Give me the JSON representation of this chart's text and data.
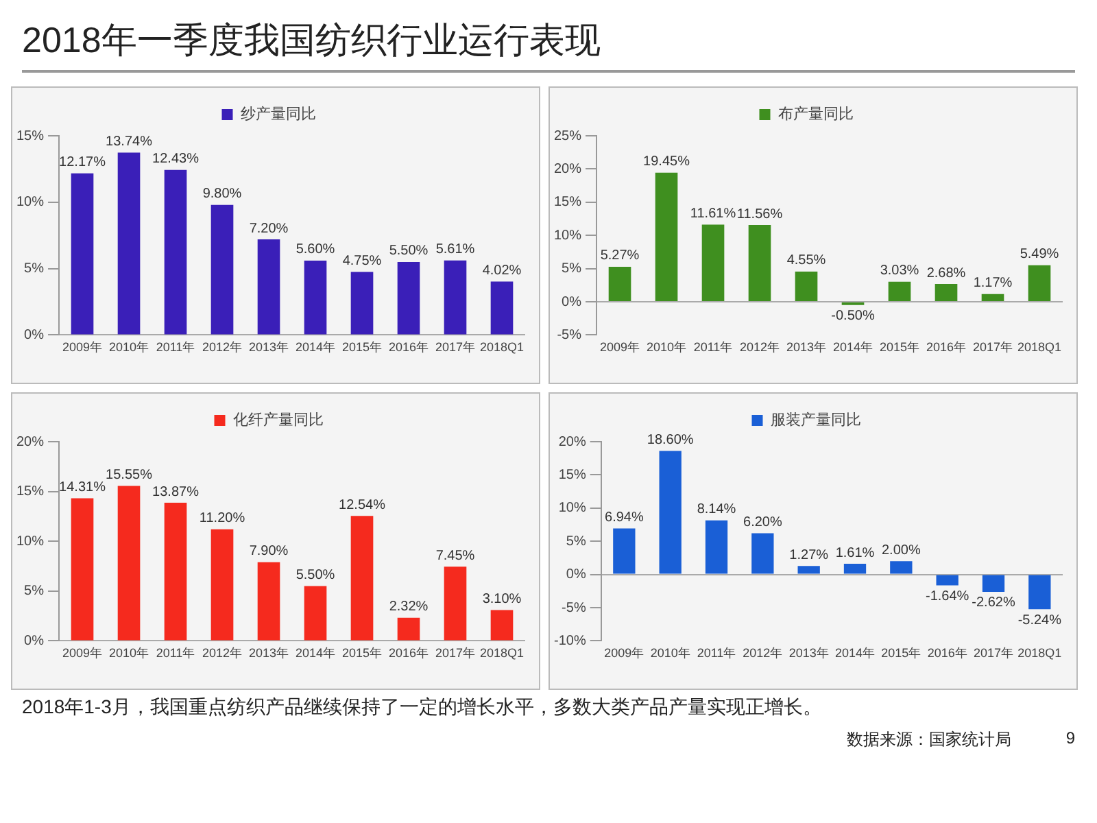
{
  "chart_data": [
    {
      "type": "other",
      "title": "2018年一季度我国纺织行业运行表现"
    },
    {
      "type": "bar",
      "categories": [
        "2009年",
        "2010年",
        "2011年",
        "2012年",
        "2013年",
        "2014年",
        "2015年",
        "2016年",
        "2017年",
        "2018Q1"
      ],
      "legend": "top",
      "series": [
        {
          "name": "纱产量同比",
          "color": "#3a1fb8",
          "values": [
            12.17,
            13.74,
            12.43,
            9.8,
            7.2,
            5.6,
            4.75,
            5.5,
            5.61,
            4.02
          ],
          "value_labels": [
            "12.17%",
            "13.74%",
            "12.43%",
            "9.80%",
            "7.20%",
            "5.60%",
            "4.75%",
            "5.50%",
            "5.61%",
            "4.02%"
          ]
        }
      ],
      "ylim": [
        0,
        15
      ],
      "yticks": [
        {
          "value": 0,
          "label": "0%"
        },
        {
          "value": 5,
          "label": "5%"
        },
        {
          "value": 10,
          "label": "10%"
        },
        {
          "value": 15,
          "label": "15%"
        }
      ]
    },
    {
      "type": "bar",
      "categories": [
        "2009年",
        "2010年",
        "2011年",
        "2012年",
        "2013年",
        "2014年",
        "2015年",
        "2016年",
        "2017年",
        "2018Q1"
      ],
      "legend": "top",
      "series": [
        {
          "name": "布产量同比",
          "color": "#3f8f1f",
          "values": [
            5.27,
            19.45,
            11.61,
            11.56,
            4.55,
            -0.5,
            3.03,
            2.68,
            1.17,
            5.49
          ],
          "value_labels": [
            "5.27%",
            "19.45%",
            "11.61%",
            "11.56%",
            "4.55%",
            "-0.50%",
            "3.03%",
            "2.68%",
            "1.17%",
            "5.49%"
          ]
        }
      ],
      "ylim": [
        -5,
        25
      ],
      "yticks": [
        {
          "value": -5,
          "label": "-5%"
        },
        {
          "value": 0,
          "label": "0%"
        },
        {
          "value": 5,
          "label": "5%"
        },
        {
          "value": 10,
          "label": "10%"
        },
        {
          "value": 15,
          "label": "15%"
        },
        {
          "value": 20,
          "label": "20%"
        },
        {
          "value": 25,
          "label": "25%"
        }
      ]
    },
    {
      "type": "bar",
      "categories": [
        "2009年",
        "2010年",
        "2011年",
        "2012年",
        "2013年",
        "2014年",
        "2015年",
        "2016年",
        "2017年",
        "2018Q1"
      ],
      "legend": "top",
      "series": [
        {
          "name": "化纤产量同比",
          "color": "#f52a1e",
          "values": [
            14.31,
            15.55,
            13.87,
            11.2,
            7.9,
            5.5,
            12.54,
            2.32,
            7.45,
            3.1
          ],
          "value_labels": [
            "14.31%",
            "15.55%",
            "13.87%",
            "11.20%",
            "7.90%",
            "5.50%",
            "12.54%",
            "2.32%",
            "7.45%",
            "3.10%"
          ]
        }
      ],
      "ylim": [
        0,
        20
      ],
      "yticks": [
        {
          "value": 0,
          "label": "0%"
        },
        {
          "value": 5,
          "label": "5%"
        },
        {
          "value": 10,
          "label": "10%"
        },
        {
          "value": 15,
          "label": "15%"
        },
        {
          "value": 20,
          "label": "20%"
        }
      ]
    },
    {
      "type": "bar",
      "categories": [
        "2009年",
        "2010年",
        "2011年",
        "2012年",
        "2013年",
        "2014年",
        "2015年",
        "2016年",
        "2017年",
        "2018Q1"
      ],
      "legend": "top",
      "series": [
        {
          "name": "服装产量同比",
          "color": "#1a5fd6",
          "values": [
            6.94,
            18.6,
            8.14,
            6.2,
            1.27,
            1.61,
            2.0,
            -1.64,
            -2.62,
            -5.24
          ],
          "value_labels": [
            "6.94%",
            "18.60%",
            "8.14%",
            "6.20%",
            "1.27%",
            "1.61%",
            "2.00%",
            "-1.64%",
            "-2.62%",
            "-5.24%"
          ]
        }
      ],
      "ylim": [
        -10,
        20
      ],
      "yticks": [
        {
          "value": -10,
          "label": "-10%"
        },
        {
          "value": -5,
          "label": "-5%"
        },
        {
          "value": 0,
          "label": "0%"
        },
        {
          "value": 5,
          "label": "5%"
        },
        {
          "value": 10,
          "label": "10%"
        },
        {
          "value": 15,
          "label": "15%"
        },
        {
          "value": 20,
          "label": "20%"
        }
      ]
    },
    {
      "type": "other",
      "annotations": [
        "2018年1-3月，我国重点纺织产品继续保持了一定的增长水平，多数大类产品产量实现正增长。",
        "数据来源：国家统计局",
        "9"
      ]
    }
  ]
}
